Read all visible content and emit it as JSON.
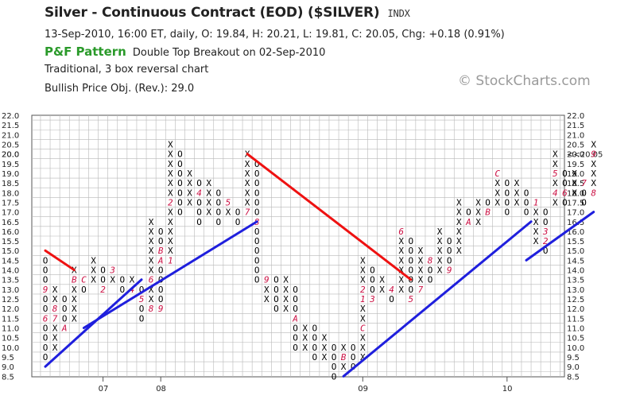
{
  "header": {
    "title": "Silver - Continuous Contract (EOD) ($SILVER)",
    "exchange": "INDX",
    "info": "13-Sep-2010, 16:00 ET, daily, O: 19.84, H: 20.21, L: 19.81, C: 20.05, Chg: +0.18 (0.91%)",
    "pattern_label": "P&F Pattern",
    "pattern_text": "Double Top Breakout on 02-Sep-2010",
    "chart_kind": "Traditional, 3 box reversal chart",
    "objective": "Bullish Price Obj. (Rev.): 29.0",
    "copyright": "© StockCharts.com"
  },
  "colors": {
    "x": "#000000",
    "o": "#000000",
    "month": "#cc1144",
    "support": "#1f1fdd",
    "resistance": "#ee1111",
    "grid": "#b8b8b8",
    "last_price": "#cc1144"
  },
  "chart_data": {
    "type": "point-and-figure",
    "box_size": 0.5,
    "reversal": 3,
    "ylim": [
      8.5,
      22.0
    ],
    "y_ticks": [
      "8.5",
      "9.0",
      "9.5",
      "10.0",
      "10.5",
      "11.0",
      "11.5",
      "12.0",
      "12.5",
      "13.0",
      "13.5",
      "14.0",
      "14.5",
      "15.0",
      "15.5",
      "16.0",
      "16.5",
      "17.0",
      "17.5",
      "18.0",
      "18.5",
      "19.0",
      "19.5",
      "20.0",
      "20.5",
      "21.0",
      "21.5",
      "22.0"
    ],
    "x_labels": [
      {
        "label": "07",
        "col": 6
      },
      {
        "label": "08",
        "col": 12
      },
      {
        "label": "09",
        "col": 33
      },
      {
        "label": "10",
        "col": 48
      }
    ],
    "last_price": {
      "value": 20.0,
      "label": "<<20.05"
    },
    "columns": [
      {
        "t": "O",
        "hi": 14.5,
        "lo": 9.5,
        "m": {
          "13.0": "9",
          "11.5": "6"
        }
      },
      {
        "t": "X",
        "hi": 13.0,
        "lo": 10.0,
        "m": {
          "12.0": "8",
          "11.5": "7"
        }
      },
      {
        "t": "O",
        "hi": 12.5,
        "lo": 11.0,
        "m": {
          "11.0": "A"
        }
      },
      {
        "t": "X",
        "hi": 14.0,
        "lo": 11.5,
        "m": {
          "13.5": "B"
        }
      },
      {
        "t": "O",
        "hi": 13.5,
        "lo": 13.0,
        "m": {
          "13.5": "C"
        }
      },
      {
        "t": "X",
        "hi": 14.5,
        "lo": 13.5,
        "m": {}
      },
      {
        "t": "O",
        "hi": 14.0,
        "lo": 13.0,
        "m": {
          "13.0": "2"
        }
      },
      {
        "t": "X",
        "hi": 14.0,
        "lo": 13.5,
        "m": {
          "14.0": "3"
        }
      },
      {
        "t": "O",
        "hi": 13.5,
        "lo": 13.0,
        "m": {}
      },
      {
        "t": "X",
        "hi": 13.5,
        "lo": 13.0,
        "m": {
          "13.0": "4"
        }
      },
      {
        "t": "O",
        "hi": 13.0,
        "lo": 11.5,
        "m": {
          "12.5": "5"
        }
      },
      {
        "t": "X",
        "hi": 16.5,
        "lo": 12.0,
        "m": {
          "13.5": "6",
          "12.0": "8"
        }
      },
      {
        "t": "O",
        "hi": 16.0,
        "lo": 12.0,
        "m": {
          "15.0": "B",
          "14.5": "A",
          "12.0": "9"
        }
      },
      {
        "t": "X",
        "hi": 20.5,
        "lo": 14.5,
        "m": {
          "17.5": "2",
          "14.5": "1"
        }
      },
      {
        "t": "O",
        "hi": 20.0,
        "lo": 17.0,
        "m": {
          "20.5": "3"
        }
      },
      {
        "t": "X",
        "hi": 19.0,
        "lo": 17.5,
        "m": {}
      },
      {
        "t": "O",
        "hi": 18.5,
        "lo": 16.5,
        "m": {
          "18.0": "4"
        }
      },
      {
        "t": "X",
        "hi": 18.5,
        "lo": 17.0,
        "m": {}
      },
      {
        "t": "O",
        "hi": 18.0,
        "lo": 16.5,
        "m": {}
      },
      {
        "t": "X",
        "hi": 17.5,
        "lo": 17.0,
        "m": {
          "17.5": "5"
        }
      },
      {
        "t": "O",
        "hi": 17.0,
        "lo": 16.5,
        "m": {}
      },
      {
        "t": "X",
        "hi": 20.0,
        "lo": 17.0,
        "m": {
          "17.0": "7"
        }
      },
      {
        "t": "O",
        "hi": 19.5,
        "lo": 13.5,
        "m": {
          "16.5": "8"
        }
      },
      {
        "t": "X",
        "hi": 13.5,
        "lo": 12.5,
        "m": {
          "13.5": "9"
        }
      },
      {
        "t": "O",
        "hi": 13.5,
        "lo": 12.0,
        "m": {}
      },
      {
        "t": "X",
        "hi": 13.5,
        "lo": 12.0,
        "m": {}
      },
      {
        "t": "O",
        "hi": 13.0,
        "lo": 10.0,
        "m": {
          "11.5": "A"
        }
      },
      {
        "t": "X",
        "hi": 11.0,
        "lo": 10.0,
        "m": {}
      },
      {
        "t": "O",
        "hi": 11.0,
        "lo": 9.5,
        "m": {}
      },
      {
        "t": "X",
        "hi": 10.5,
        "lo": 9.5,
        "m": {}
      },
      {
        "t": "O",
        "hi": 10.0,
        "lo": 8.5,
        "m": {}
      },
      {
        "t": "X",
        "hi": 10.0,
        "lo": 9.0,
        "m": {
          "9.5": "B"
        }
      },
      {
        "t": "O",
        "hi": 10.0,
        "lo": 9.0,
        "m": {}
      },
      {
        "t": "X",
        "hi": 14.5,
        "lo": 9.5,
        "m": {
          "11.0": "C",
          "12.5": "1",
          "13.0": "2"
        }
      },
      {
        "t": "O",
        "hi": 14.0,
        "lo": 12.5,
        "m": {
          "12.5": "3"
        }
      },
      {
        "t": "X",
        "hi": 13.5,
        "lo": 13.0,
        "m": {}
      },
      {
        "t": "O",
        "hi": 13.0,
        "lo": 12.5,
        "m": {
          "13.0": "4"
        }
      },
      {
        "t": "X",
        "hi": 16.0,
        "lo": 13.0,
        "m": {
          "16.0": "6"
        }
      },
      {
        "t": "O",
        "hi": 15.5,
        "lo": 12.5,
        "m": {
          "12.5": "5"
        }
      },
      {
        "t": "X",
        "hi": 15.0,
        "lo": 13.0,
        "m": {
          "13.0": "7"
        }
      },
      {
        "t": "O",
        "hi": 14.5,
        "lo": 13.5,
        "m": {
          "14.5": "8"
        }
      },
      {
        "t": "X",
        "hi": 16.0,
        "lo": 14.0,
        "m": {}
      },
      {
        "t": "O",
        "hi": 15.5,
        "lo": 14.0,
        "m": {
          "14.0": "9"
        }
      },
      {
        "t": "X",
        "hi": 17.5,
        "lo": 15.0,
        "m": {}
      },
      {
        "t": "O",
        "hi": 17.0,
        "lo": 16.5,
        "m": {
          "16.5": "A"
        }
      },
      {
        "t": "X",
        "hi": 17.5,
        "lo": 16.5,
        "m": {}
      },
      {
        "t": "O",
        "hi": 17.5,
        "lo": 17.0,
        "m": {
          "17.0": "B"
        }
      },
      {
        "t": "X",
        "hi": 19.0,
        "lo": 17.5,
        "m": {
          "19.0": "C"
        }
      },
      {
        "t": "O",
        "hi": 18.5,
        "lo": 17.0,
        "m": {}
      },
      {
        "t": "X",
        "hi": 18.5,
        "lo": 17.5,
        "m": {}
      },
      {
        "t": "O",
        "hi": 18.0,
        "lo": 17.0,
        "m": {}
      },
      {
        "t": "X",
        "hi": 17.5,
        "lo": 15.5,
        "m": {
          "17.5": "1"
        }
      },
      {
        "t": "O",
        "hi": 17.0,
        "lo": 15.0,
        "m": {
          "15.5": "2",
          "16.0": "3"
        }
      },
      {
        "t": "X",
        "hi": 20.0,
        "lo": 17.5,
        "m": {
          "18.0": "4",
          "19.0": "5"
        }
      },
      {
        "t": "O",
        "hi": 19.0,
        "lo": 17.5,
        "m": {
          "18.0": "6"
        }
      },
      {
        "t": "X",
        "hi": 19.0,
        "lo": 18.0,
        "m": {}
      },
      {
        "t": "O",
        "hi": 18.5,
        "lo": 17.5,
        "m": {
          "18.5": "7"
        }
      },
      {
        "t": "X",
        "hi": 20.5,
        "lo": 18.0,
        "m": {
          "20.0": "9",
          "18.0": "8"
        }
      }
    ],
    "trendlines": [
      {
        "kind": "support",
        "from": [
          0.0,
          9.0
        ],
        "to": [
          10.0,
          13.5
        ]
      },
      {
        "kind": "support",
        "from": [
          4.0,
          11.0
        ],
        "to": [
          22.0,
          16.5
        ]
      },
      {
        "kind": "support",
        "from": [
          31.0,
          8.5
        ],
        "to": [
          50.5,
          16.5
        ]
      },
      {
        "kind": "support",
        "from": [
          50.0,
          14.5
        ],
        "to": [
          57.0,
          17.0
        ]
      },
      {
        "kind": "resistance",
        "from": [
          0.0,
          15.0
        ],
        "to": [
          3.0,
          14.0
        ]
      },
      {
        "kind": "resistance",
        "from": [
          21.0,
          20.0
        ],
        "to": [
          38.0,
          13.5
        ]
      }
    ]
  }
}
